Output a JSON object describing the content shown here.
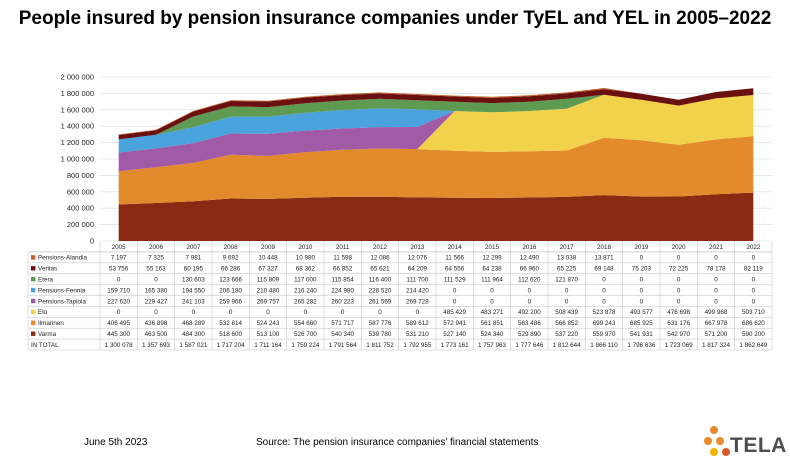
{
  "title": "People insured by pension insurance companies under TyEL and YEL in 2005–2022",
  "footer": {
    "date": "June 5th 2023",
    "source": "Source: The pension insurance companies’ financial statements"
  },
  "logo": {
    "text": "TELA"
  },
  "chart_data": {
    "type": "area",
    "stacked": true,
    "categories": [
      "2005",
      "2006",
      "2007",
      "2008",
      "2009",
      "2010",
      "2011",
      "2012",
      "2013",
      "2014",
      "2015",
      "2016",
      "2017",
      "2018",
      "2019",
      "2020",
      "2021",
      "2022"
    ],
    "yticks": [
      "0",
      "200 000",
      "400 000",
      "600 000",
      "800 000",
      "1 000 000",
      "1 200 000",
      "1 400 000",
      "1 600 000",
      "1 800 000",
      "2 000 000"
    ],
    "ylim": [
      0,
      2000000
    ],
    "series": [
      {
        "name": "Varma",
        "color": "#8b2a12",
        "values": [
          445300,
          463500,
          484300,
          518600,
          513100,
          526700,
          540340,
          539780,
          531210,
          527140,
          524340,
          529890,
          537220,
          559970,
          541931,
          542970,
          571200,
          590200
        ],
        "labels": [
          "445 300",
          "463 500",
          "484 300",
          "518 600",
          "513 100",
          "526 700",
          "540 340",
          "539 780",
          "531 210",
          "527 140",
          "524 340",
          "529 890",
          "537 220",
          "559 970",
          "541 931",
          "542 970",
          "571 200",
          "590 200"
        ]
      },
      {
        "name": "Ilmarinen",
        "color": "#e38b2c",
        "values": [
          406495,
          436898,
          468289,
          532814,
          524243,
          554660,
          571717,
          587776,
          589612,
          572941,
          561851,
          563486,
          566852,
          699243,
          685925,
          631176,
          667978,
          686620
        ],
        "labels": [
          "406 495",
          "436 898",
          "468 289",
          "532 814",
          "524 243",
          "554 660",
          "571 717",
          "587 776",
          "589 612",
          "572 941",
          "561 851",
          "563 486",
          "566 852",
          "699 243",
          "685 925",
          "631 176",
          "667 978",
          "686 620"
        ]
      },
      {
        "name": "Elo",
        "color": "#f2d24b",
        "values": [
          0,
          0,
          0,
          0,
          0,
          0,
          0,
          0,
          0,
          485429,
          483271,
          492200,
          508439,
          523878,
          493577,
          476698,
          499968,
          503710
        ],
        "labels": [
          "0",
          "0",
          "0",
          "0",
          "0",
          "0",
          "0",
          "0",
          "0",
          "485 429",
          "483 271",
          "492 200",
          "508 439",
          "523 878",
          "493 577",
          "476 698",
          "499 968",
          "503 710"
        ]
      },
      {
        "name": "Pensions-Tapiola",
        "color": "#a05aa6",
        "values": [
          227620,
          229427,
          241103,
          259966,
          269757,
          265282,
          260223,
          261569,
          269728,
          0,
          0,
          0,
          0,
          0,
          0,
          0,
          0,
          0
        ],
        "labels": [
          "227 620",
          "229 427",
          "241 103",
          "259 966",
          "269 757",
          "265 282",
          "260 223",
          "261 569",
          "269 728",
          "0",
          "0",
          "0",
          "0",
          "0",
          "0",
          "0",
          "0",
          "0"
        ]
      },
      {
        "name": "Pensions-Fennia",
        "color": "#4aa3dc",
        "values": [
          159710,
          165380,
          194550,
          206180,
          210480,
          216240,
          224980,
          228520,
          214420,
          0,
          0,
          0,
          0,
          0,
          0,
          0,
          0,
          0
        ],
        "labels": [
          "159 710",
          "165 380",
          "194 550",
          "206 180",
          "210 480",
          "216 240",
          "224 980",
          "228 520",
          "214 420",
          "0",
          "0",
          "0",
          "0",
          "0",
          "0",
          "0",
          "0",
          "0"
        ]
      },
      {
        "name": "Etera",
        "color": "#5e9a52",
        "values": [
          0,
          0,
          130603,
          123666,
          115809,
          117000,
          115854,
          116400,
          111700,
          111529,
          111964,
          112620,
          121870,
          0,
          0,
          0,
          0,
          0
        ],
        "labels": [
          "0",
          "0",
          "130 603",
          "123 666",
          "115 809",
          "117 000",
          "115 854",
          "116 400",
          "111 700",
          "111 529",
          "111 964",
          "112 620",
          "121 870",
          "0",
          "0",
          "0",
          "0",
          "0"
        ]
      },
      {
        "name": "Veritas",
        "color": "#6b1010",
        "values": [
          53756,
          55163,
          60195,
          66286,
          67327,
          68362,
          66852,
          65621,
          64209,
          64556,
          64238,
          66960,
          65225,
          69148,
          75203,
          72225,
          78178,
          82119
        ],
        "labels": [
          "53 756",
          "55 163",
          "60 195",
          "66 286",
          "67 327",
          "68 362",
          "66 852",
          "65 621",
          "64 209",
          "64 556",
          "64 238",
          "66 960",
          "65 225",
          "69 148",
          "75 203",
          "72 225",
          "78 178",
          "82 119"
        ]
      },
      {
        "name": "Pensions-Alandia",
        "color": "#c0612b",
        "values": [
          7197,
          7325,
          7981,
          9692,
          10448,
          10980,
          11598,
          12086,
          12076,
          11566,
          12299,
          12490,
          13038,
          13871,
          0,
          0,
          0,
          0
        ],
        "labels": [
          "7 197",
          "7 325",
          "7 981",
          "9 692",
          "10 448",
          "10 980",
          "11 598",
          "12 086",
          "12 076",
          "11 566",
          "12 299",
          "12 490",
          "13 038",
          "13 871",
          "0",
          "0",
          "0",
          "0"
        ]
      }
    ],
    "table_row_order": [
      "Pensions-Alandia",
      "Veritas",
      "Etera",
      "Pensions-Fennia",
      "Pensions-Tapiola",
      "Elo",
      "Ilmarinen",
      "Varma"
    ],
    "total": {
      "name": "IN TOTAL",
      "labels": [
        "1 300 078",
        "1 357 693",
        "1 587 021",
        "1 717 204",
        "1 711 164",
        "1 759 224",
        "1 791 564",
        "1 811 752",
        "1 792 955",
        "1 773 161",
        "1 757 963",
        "1 777 646",
        "1 812 644",
        "1 866 110",
        "1 796 636",
        "1 723 069",
        "1 817 324",
        "1 862 649"
      ]
    }
  }
}
